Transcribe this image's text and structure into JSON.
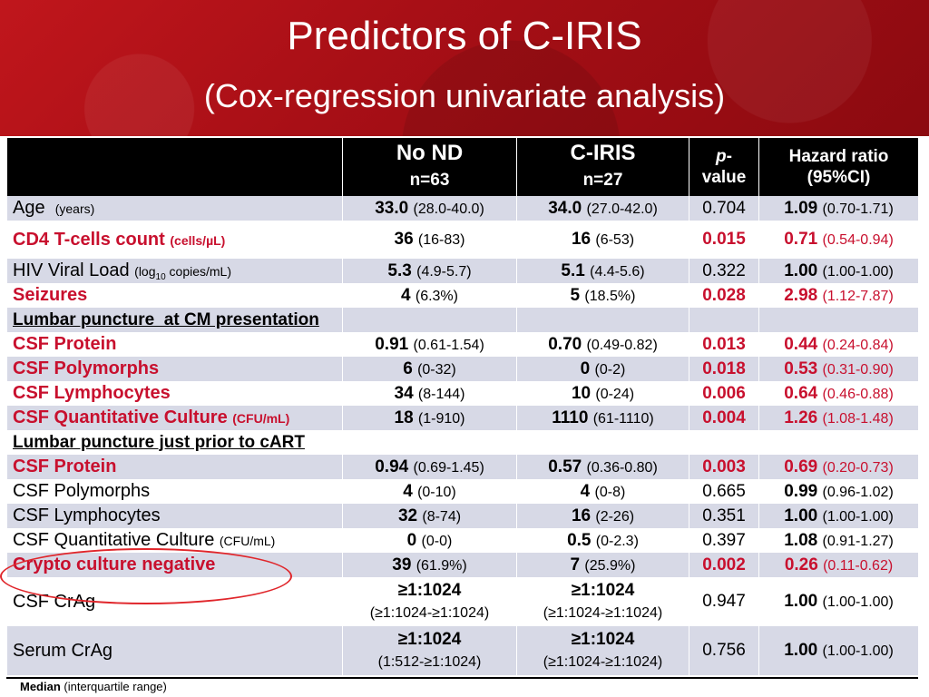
{
  "title": "Predictors of C-IRIS",
  "subtitle": "(Cox-regression univariate analysis)",
  "header": {
    "col2_line1": "No ND",
    "col2_line2": "n=63",
    "col3_line1": "C-IRIS",
    "col3_line2": "n=27",
    "col4_p": "p",
    "col4_rest": "-",
    "col4_line2": "value",
    "col5_line1": "Hazard ratio",
    "col5_line2": "(95%CI)"
  },
  "rows": {
    "age": {
      "label": "Age",
      "unit": "(years)",
      "a": "33.0",
      "a_ci": "(28.0-40.0)",
      "b": "34.0",
      "b_ci": "(27.0-42.0)",
      "p": "0.704",
      "hr": "1.09",
      "hr_ci": "(0.70-1.71)"
    },
    "cd4": {
      "label": "CD4 T-cells count",
      "unit": "(cells/µL)",
      "a": "36",
      "a_ci": "(16-83)",
      "b": "16",
      "b_ci": "(6-53)",
      "p": "0.015",
      "hr": "0.71",
      "hr_ci": "(0.54-0.94)"
    },
    "hiv": {
      "label": "HIV Viral Load",
      "unit_pre": "(log",
      "unit_sub": "10",
      "unit_post": " copies/mL)",
      "a": "5.3",
      "a_ci": "(4.9-5.7)",
      "b": "5.1",
      "b_ci": "(4.4-5.6)",
      "p": "0.322",
      "hr": "1.00",
      "hr_ci": "(1.00-1.00)"
    },
    "seizures": {
      "label": "Seizures",
      "a": "4",
      "a_ci": "(6.3%)",
      "b": "5",
      "b_ci": "(18.5%)",
      "p": "0.028",
      "hr": "2.98",
      "hr_ci": "(1.12-7.87)"
    },
    "section1": {
      "label": "Lumbar puncture  at CM presentation"
    },
    "csfprot1": {
      "label": "CSF Protein",
      "a": "0.91",
      "a_ci": "(0.61-1.54)",
      "b": "0.70",
      "b_ci": "(0.49-0.82)",
      "p": "0.013",
      "hr": "0.44",
      "hr_ci": "(0.24-0.84)"
    },
    "csfpoly1": {
      "label": "CSF Polymorphs",
      "a": "6",
      "a_ci": "(0-32)",
      "b": "0",
      "b_ci": "(0-2)",
      "p": "0.018",
      "hr": "0.53",
      "hr_ci": "(0.31-0.90)"
    },
    "csflym1": {
      "label": "CSF Lymphocytes",
      "a": "34",
      "a_ci": "(8-144)",
      "b": "10",
      "b_ci": "(0-24)",
      "p": "0.006",
      "hr": "0.64",
      "hr_ci": "(0.46-0.88)"
    },
    "csfquant1": {
      "label": "CSF Quantitative Culture",
      "unit": "(CFU/mL)",
      "a": "18",
      "a_ci": "(1-910)",
      "b": "1110",
      "b_ci": "(61-1110)",
      "p": "0.004",
      "hr": "1.26",
      "hr_ci": "(1.08-1.48)"
    },
    "section2": {
      "label": "Lumbar puncture just prior to cART"
    },
    "csfprot2": {
      "label": "CSF Protein",
      "a": "0.94",
      "a_ci": "(0.69-1.45)",
      "b": "0.57",
      "b_ci": "(0.36-0.80)",
      "p": "0.003",
      "hr": "0.69",
      "hr_ci": "(0.20-0.73)"
    },
    "csfpoly2": {
      "label": "CSF Polymorphs",
      "a": "4",
      "a_ci": "(0-10)",
      "b": "4",
      "b_ci": "(0-8)",
      "p": "0.665",
      "hr": "0.99",
      "hr_ci": "(0.96-1.02)"
    },
    "csflym2": {
      "label": "CSF Lymphocytes",
      "a": "32",
      "a_ci": "(8-74)",
      "b": "16",
      "b_ci": "(2-26)",
      "p": "0.351",
      "hr": "1.00",
      "hr_ci": "(1.00-1.00)"
    },
    "csfquant2": {
      "label": "CSF Quantitative Culture",
      "unit": "(CFU/mL)",
      "a": "0",
      "a_ci": "(0-0)",
      "b": "0.5",
      "b_ci": "(0-2.3)",
      "p": "0.397",
      "hr": "1.08",
      "hr_ci": "(0.91-1.27)"
    },
    "crypto": {
      "label": "Crypto culture negative",
      "a": "39",
      "a_ci": "(61.9%)",
      "b": "7",
      "b_ci": "(25.9%)",
      "p": "0.002",
      "hr": "0.26",
      "hr_ci": "(0.11-0.62)"
    },
    "csfcrag": {
      "label": "CSF CrAg",
      "a": "≥1:1024",
      "a_ci": "(≥1:1024-≥1:1024)",
      "b": "≥1:1024",
      "b_ci": "(≥1:1024-≥1:1024)",
      "p": "0.947",
      "hr": "1.00",
      "hr_ci": "(1.00-1.00)"
    },
    "serumcrag": {
      "label": "Serum CrAg",
      "a": "≥1:1024",
      "a_ci": "(1:512-≥1:1024)",
      "b": "≥1:1024",
      "b_ci": "(≥1:1024-≥1:1024)",
      "p": "0.756",
      "hr": "1.00",
      "hr_ci": "(1.00-1.00)"
    }
  },
  "footnote": {
    "bold": "Median",
    "rest": " (interquartile range)"
  },
  "colors": {
    "accent_red": "#c8102e",
    "banner_red": "#b3121a",
    "row_shade": "#d7d9e6",
    "header_bg": "#000000"
  }
}
